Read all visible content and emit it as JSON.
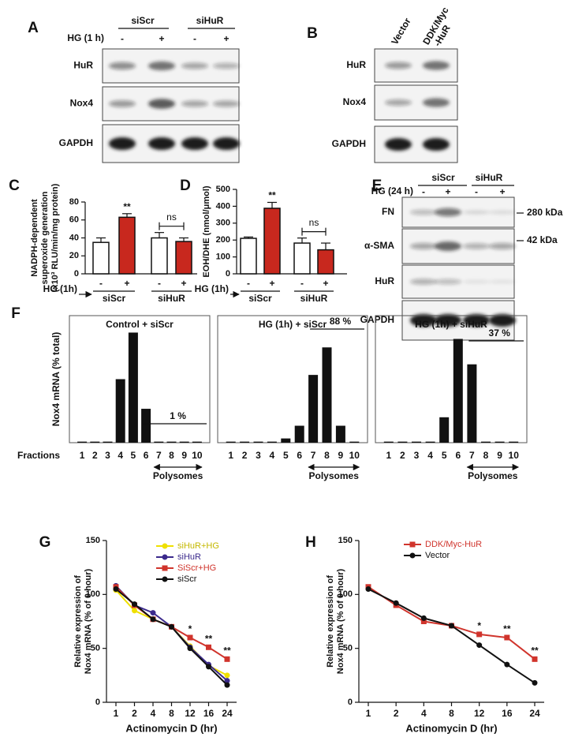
{
  "panels": {
    "A": {
      "letter": "A",
      "treatment": "HG (1 h)",
      "groups": [
        "siScr",
        "siHuR"
      ],
      "signs": [
        "-",
        "+",
        "-",
        "+"
      ],
      "rows": [
        "HuR",
        "Nox4",
        "GAPDH"
      ]
    },
    "B": {
      "letter": "B",
      "lanes": [
        [
          "Vector"
        ],
        [
          "DDK/Myc",
          "-HuR"
        ]
      ],
      "rows": [
        "HuR",
        "Nox4",
        "GAPDH"
      ]
    },
    "E": {
      "letter": "E",
      "treatment": "HG (24 h)",
      "groups": [
        "siScr",
        "siHuR"
      ],
      "signs": [
        "-",
        "+",
        "-",
        "+"
      ],
      "rows": [
        "FN",
        "α-SMA",
        "HuR",
        "GAPDH"
      ],
      "markers": [
        "280 kDa",
        "42 kDa"
      ]
    }
  },
  "chart_data": [
    {
      "type": "bar",
      "letter": "C",
      "ylabel": [
        "NADPH-dependent",
        "superoxide generation",
        "(x10³ RLU/min/mg protein)"
      ],
      "xlabel": "HG (1h)",
      "categories": [
        "-",
        "+",
        "-",
        "+"
      ],
      "groups": [
        "siScr",
        "siHuR"
      ],
      "values": [
        35,
        63,
        40,
        36
      ],
      "errors": [
        5,
        4,
        6,
        4
      ],
      "colors": [
        "#ffffff",
        "#c8281e",
        "#ffffff",
        "#c8281e"
      ],
      "ylim": [
        0,
        80
      ],
      "yticks": [
        0,
        20,
        40,
        60,
        80
      ],
      "annotations": [
        "**",
        "ns"
      ]
    },
    {
      "type": "bar",
      "letter": "D",
      "ylabel": [
        "EOH/DHE (nmol/μmol)"
      ],
      "xlabel": "HG (1h)",
      "categories": [
        "-",
        "+",
        "-",
        "+"
      ],
      "groups": [
        "siScr",
        "siHuR"
      ],
      "values": [
        210,
        388,
        182,
        142
      ],
      "errors": [
        8,
        35,
        30,
        40
      ],
      "colors": [
        "#ffffff",
        "#c8281e",
        "#ffffff",
        "#c8281e"
      ],
      "ylim": [
        0,
        500
      ],
      "yticks": [
        0,
        100,
        200,
        300,
        400,
        500
      ],
      "annotations": [
        "**",
        "ns"
      ]
    },
    {
      "type": "polysome",
      "letter": "F",
      "title": "Control + siScr",
      "ylabel": "Nox4 mRNA (% total)",
      "xlabel": "Fractions",
      "categories": [
        "1",
        "2",
        "3",
        "4",
        "5",
        "6",
        "7",
        "8",
        "9",
        "10"
      ],
      "values": [
        0.5,
        0.5,
        0.5,
        30,
        52,
        16,
        0.5,
        0.5,
        0.5,
        0.5
      ],
      "color": "#111111",
      "ylim": [
        0,
        60
      ],
      "annotation": "1 %",
      "region_label": "Polysomes"
    },
    {
      "type": "polysome",
      "title": "HG (1h) + siScr",
      "categories": [
        "1",
        "2",
        "3",
        "4",
        "5",
        "6",
        "7",
        "8",
        "9",
        "10"
      ],
      "values": [
        0.5,
        0.5,
        0.5,
        0.5,
        2,
        8,
        32,
        45,
        8,
        0.5
      ],
      "color": "#111111",
      "ylim": [
        0,
        60
      ],
      "annotation": "88 %",
      "region_label": "Polysomes"
    },
    {
      "type": "polysome",
      "title": "HG (1h) + siHuR",
      "categories": [
        "1",
        "2",
        "3",
        "4",
        "5",
        "6",
        "7",
        "8",
        "9",
        "10"
      ],
      "values": [
        0.5,
        0.5,
        0.5,
        0.5,
        12,
        49,
        37,
        0.5,
        0.5,
        0.5
      ],
      "color": "#111111",
      "ylim": [
        0,
        60
      ],
      "annotation": "37 %",
      "region_label": "Polysomes"
    },
    {
      "type": "line",
      "letter": "G",
      "ylabel": [
        "Relative expression of",
        "Nox4 mRNA (% of 0 hour)"
      ],
      "xlabel": "Actinomycin D (hr)",
      "categories": [
        "1",
        "2",
        "4",
        "8",
        "12",
        "16",
        "24"
      ],
      "ylim": [
        0,
        150
      ],
      "yticks": [
        0,
        50,
        100,
        150
      ],
      "annotations": [
        "*",
        "**",
        "**"
      ],
      "series": [
        {
          "name": "siHuR+HG",
          "color": "#efe000",
          "values": [
            104,
            85,
            77,
            70,
            52,
            34,
            25
          ]
        },
        {
          "name": "siHuR",
          "color": "#3b2a8c",
          "values": [
            108,
            90,
            83,
            70,
            51,
            35,
            20
          ]
        },
        {
          "name": "SiScr+HG",
          "color": "#d0342c",
          "values": [
            107,
            90,
            77,
            70,
            60,
            51,
            40
          ]
        },
        {
          "name": "siScr",
          "color": "#111111",
          "values": [
            105,
            91,
            77,
            70,
            50,
            33,
            16
          ]
        }
      ]
    },
    {
      "type": "line",
      "letter": "H",
      "ylabel": [
        "Relative expression of",
        "Nox4 mRNA (% of 0 hour)"
      ],
      "xlabel": "Actinomycin D (hr)",
      "categories": [
        "1",
        "2",
        "4",
        "8",
        "12",
        "16",
        "24"
      ],
      "ylim": [
        0,
        150
      ],
      "yticks": [
        0,
        50,
        100,
        150
      ],
      "annotations": [
        "*",
        "**",
        "**"
      ],
      "series": [
        {
          "name": "DDK/Myc-HuR",
          "color": "#d0342c",
          "values": [
            107,
            90,
            75,
            71,
            63,
            60,
            40
          ]
        },
        {
          "name": "Vector",
          "color": "#111111",
          "values": [
            105,
            92,
            78,
            71,
            53,
            35,
            18
          ]
        }
      ]
    }
  ]
}
